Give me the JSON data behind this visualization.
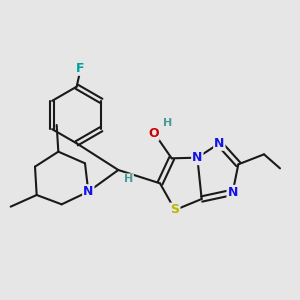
{
  "bg_color": "#e6e6e6",
  "bond_color": "#1a1a1a",
  "bond_width": 1.5,
  "atom_colors": {
    "N": "#1414e6",
    "O": "#cc0000",
    "S": "#b8b800",
    "F": "#00a0a0",
    "H_label": "#4a9a9a",
    "C": "#1a1a1a"
  }
}
